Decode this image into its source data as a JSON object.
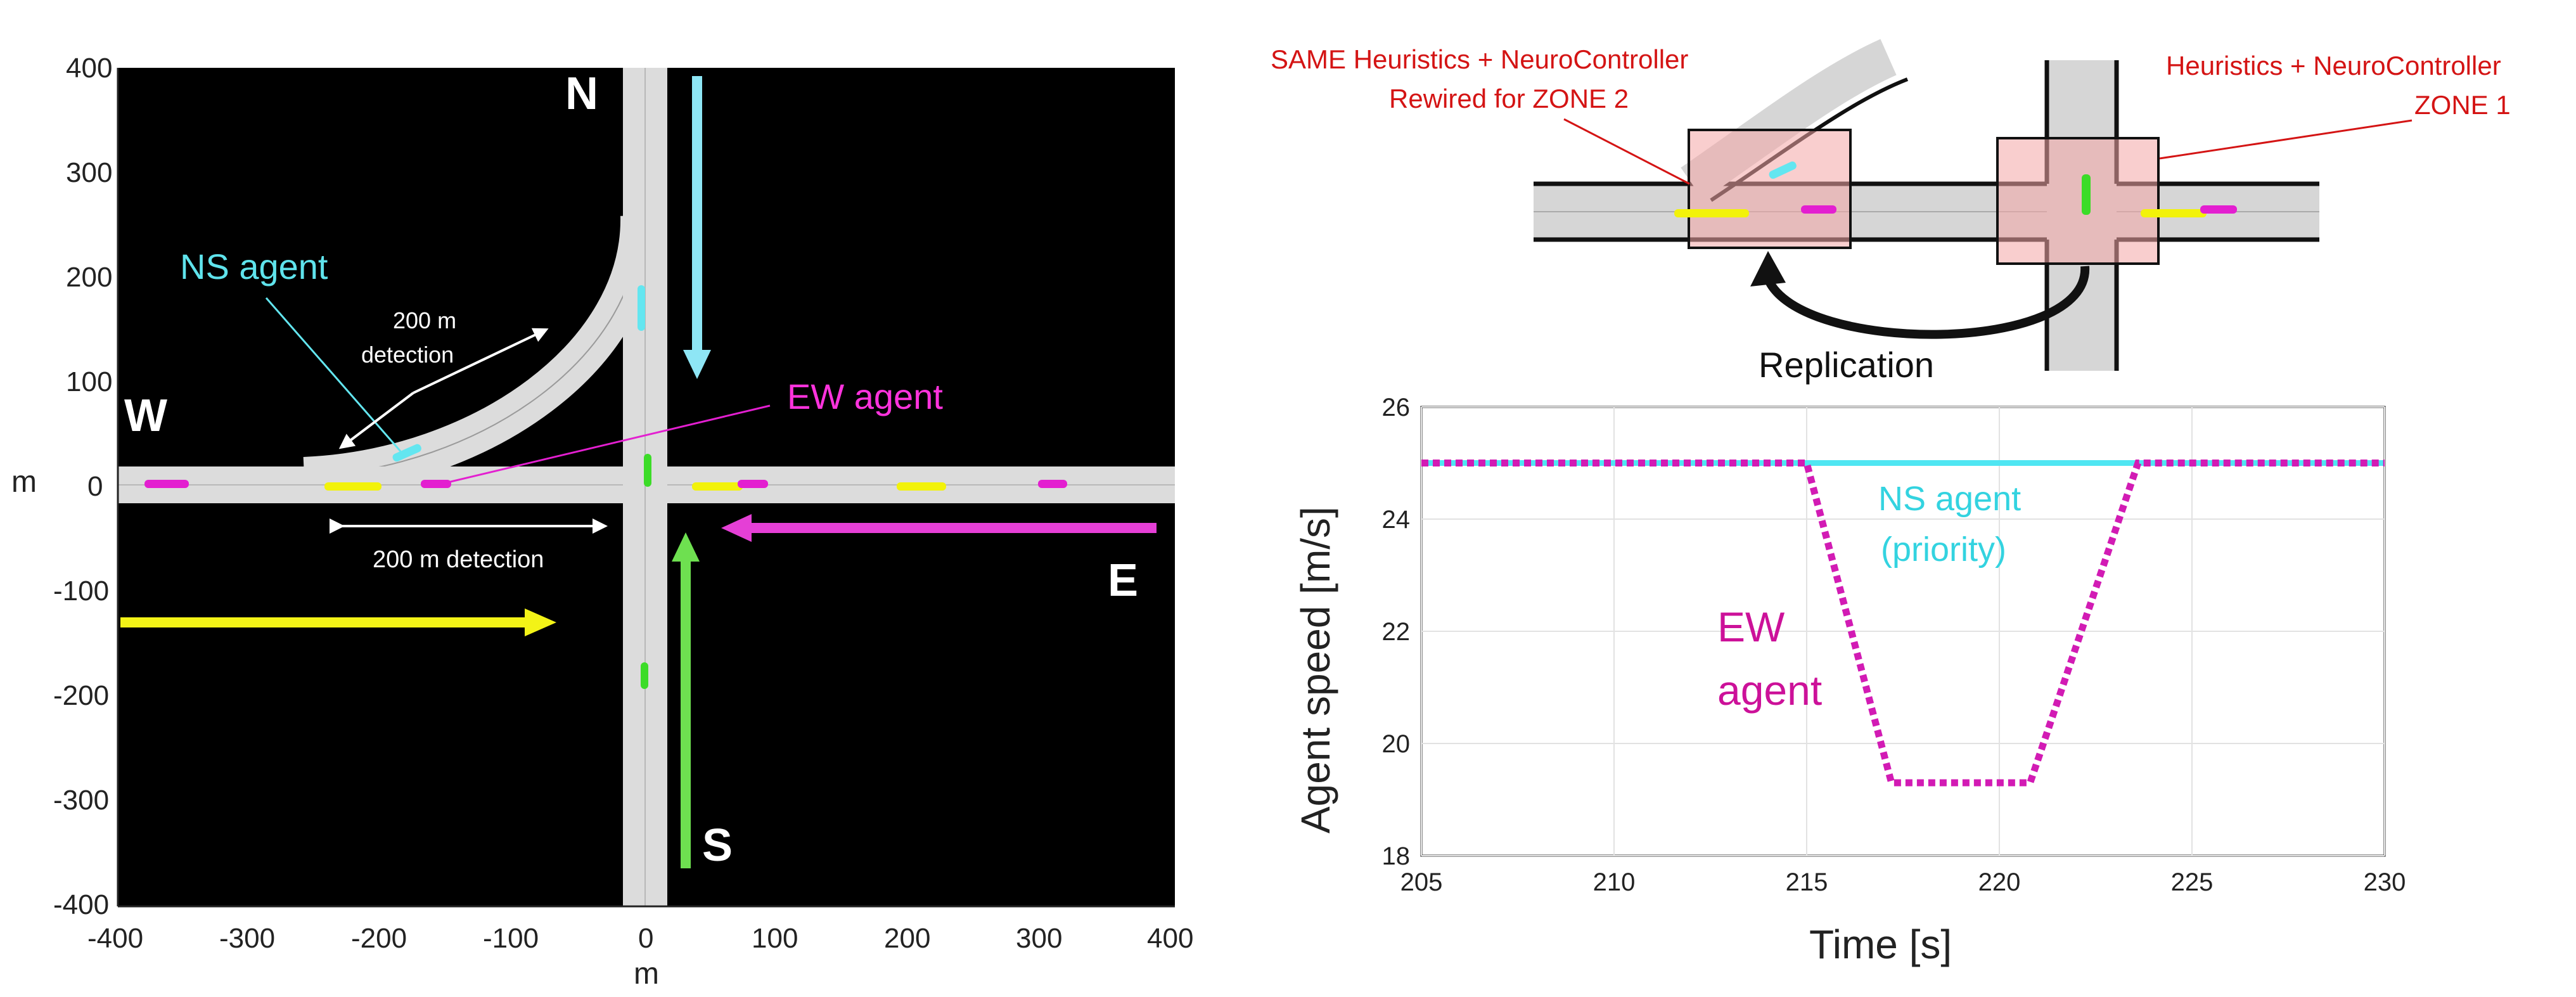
{
  "colors": {
    "road": "#d9d9d9",
    "background": "#000000",
    "ns_agent": "#63e6f0",
    "ew_agent": "#e31fd0",
    "yellow_vehicle": "#f2f20a",
    "green_vehicle": "#3cdc28",
    "zone_fill": "#f4a6a6",
    "annotation_red": "#d41414"
  },
  "map": {
    "xlabel": "m",
    "ylabel": "m",
    "x_ticks": [
      "-400",
      "-300",
      "-200",
      "-100",
      "0",
      "100",
      "200",
      "300",
      "400"
    ],
    "y_ticks": [
      "400",
      "300",
      "200",
      "100",
      "0",
      "-100",
      "-200",
      "-300",
      "-400"
    ],
    "dir_n": "N",
    "dir_s": "S",
    "dir_e": "E",
    "dir_w": "W",
    "ns_agent_label": "NS agent",
    "ew_agent_label": "EW agent",
    "det_curve_line1": "200 m",
    "det_curve_line2": "detection",
    "det_horizontal": "200 m detection"
  },
  "schematic": {
    "zone2_line1": "SAME Heuristics + NeuroController",
    "zone2_line2": "Rewired for ZONE 2",
    "zone1_line1": "Heuristics + NeuroController",
    "zone1_line2": "ZONE 1",
    "replication": "Replication"
  },
  "chart_data": {
    "type": "line",
    "xlabel": "Time [s]",
    "ylabel": "Agent speed [m/s]",
    "xlim": [
      205,
      230
    ],
    "ylim": [
      18,
      26
    ],
    "x_ticks": [
      "205",
      "210",
      "215",
      "220",
      "225",
      "230"
    ],
    "y_ticks": [
      "26",
      "24",
      "22",
      "20",
      "18"
    ],
    "grid": true,
    "series": [
      {
        "name": "NS agent",
        "name_line1": "NS agent",
        "name_line2": "(priority)",
        "color": "#4fe6f2",
        "style": "solid",
        "x": [
          205,
          230
        ],
        "y": [
          25,
          25
        ]
      },
      {
        "name": "EW agent",
        "name_line1": "EW",
        "name_line2": "agent",
        "color": "#d21bb4",
        "style": "dotted",
        "x": [
          205,
          215,
          217.2,
          220.8,
          223.6,
          230
        ],
        "y": [
          25,
          25,
          19.3,
          19.3,
          25,
          25
        ]
      }
    ]
  }
}
